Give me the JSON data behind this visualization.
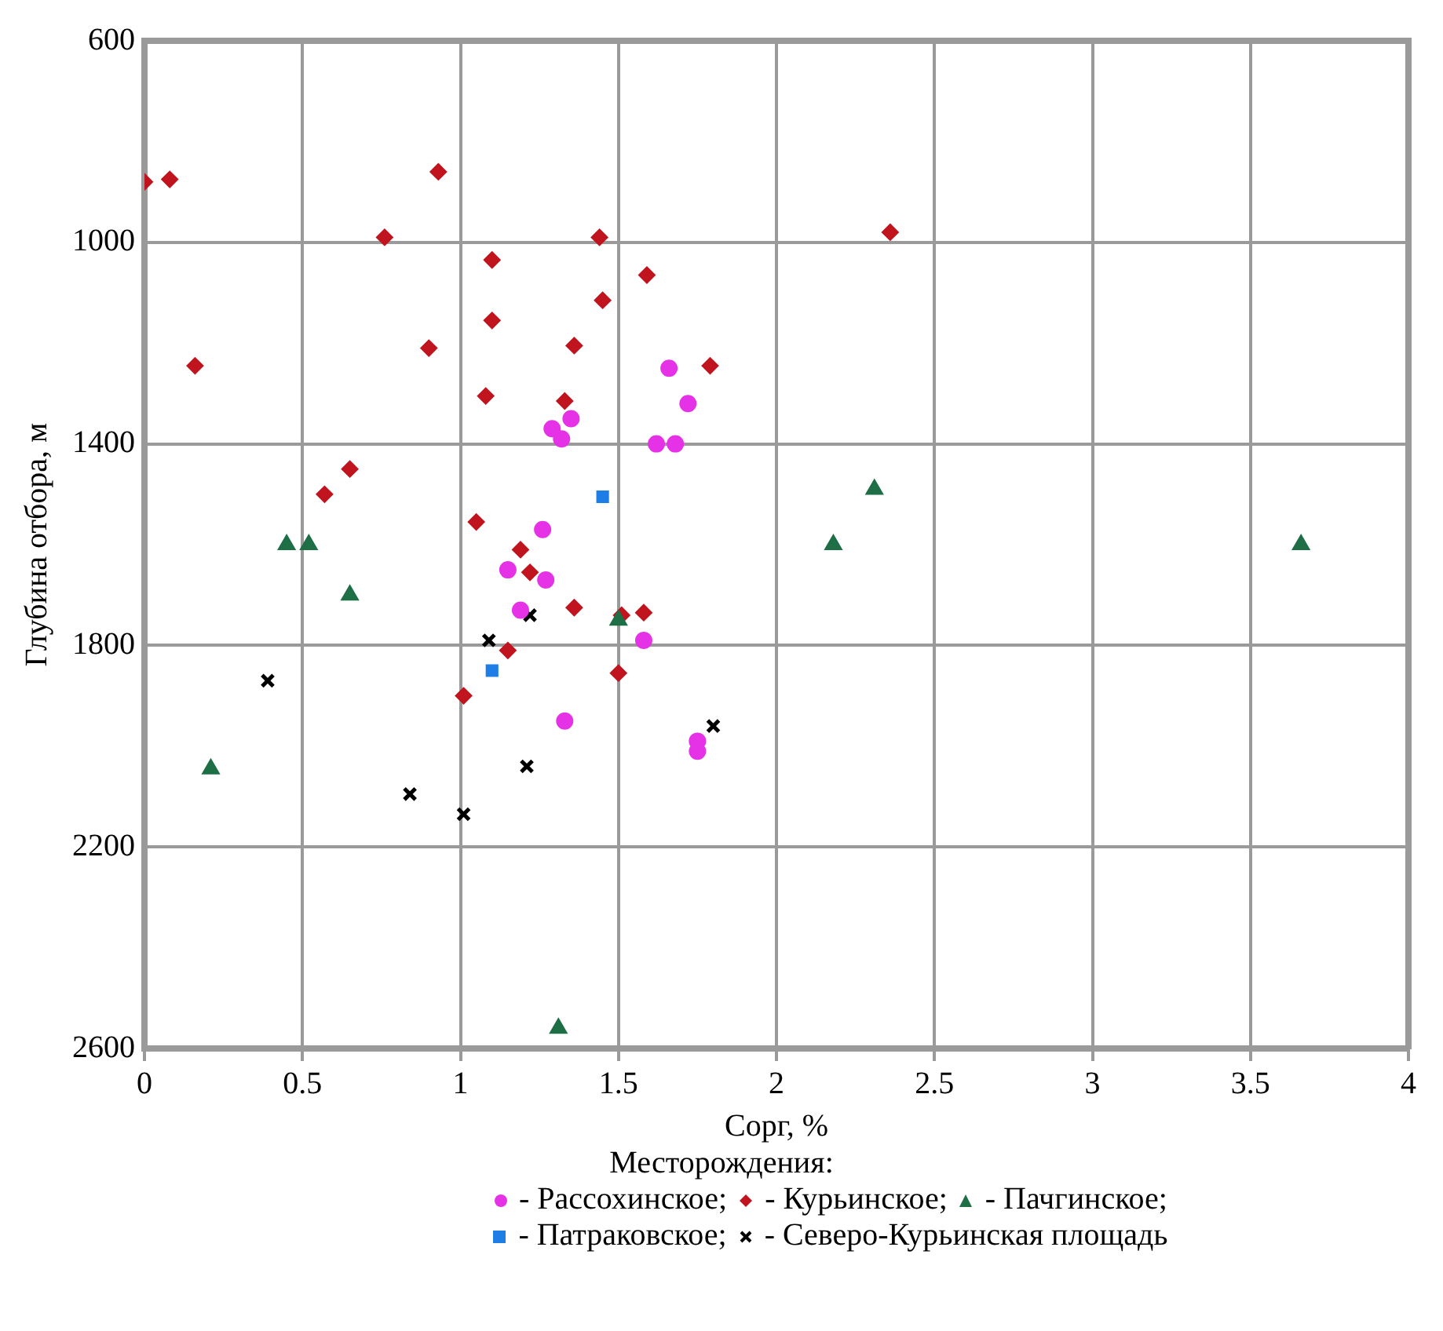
{
  "chart_data": {
    "type": "scatter",
    "xlabel": "Сорг, %",
    "ylabel": "Глубина отбора, м",
    "legend_title": "Месторождения:",
    "xlim": [
      0,
      4
    ],
    "xticks": [
      0,
      0.5,
      1,
      1.5,
      2,
      2.5,
      3,
      3.5,
      4
    ],
    "ylim": [
      2600,
      600
    ],
    "yticks": [
      600,
      1000,
      1400,
      1800,
      2200,
      2600
    ],
    "grid": true,
    "legend": "bottom",
    "series": [
      {
        "name": "- Рассохинское;",
        "color": "#e632e6",
        "marker": "circle",
        "x": [
          1.66,
          1.72,
          1.35,
          1.29,
          1.32,
          1.62,
          1.68,
          1.26,
          1.15,
          1.27,
          1.19,
          1.58,
          1.33,
          1.75,
          1.75
        ],
        "values": [
          1250,
          1320,
          1350,
          1370,
          1390,
          1400,
          1400,
          1570,
          1650,
          1670,
          1730,
          1790,
          1950,
          1990,
          2010
        ]
      },
      {
        "name": "- Курьинское;",
        "color": "#c0141e",
        "marker": "diamond",
        "x": [
          0,
          0.08,
          0.93,
          0.76,
          1.44,
          1.1,
          1.59,
          1.45,
          1.1,
          0.9,
          1.36,
          0.16,
          1.79,
          1.08,
          1.33,
          0.65,
          0.57,
          1.05,
          1.19,
          1.22,
          2.36,
          1.36,
          1.51,
          1.58,
          1.15,
          1.5,
          1.01
        ],
        "values": [
          880,
          875,
          860,
          990,
          990,
          1035,
          1065,
          1115,
          1155,
          1210,
          1205,
          1245,
          1245,
          1305,
          1315,
          1450,
          1500,
          1555,
          1610,
          1655,
          980,
          1725,
          1740,
          1735,
          1810,
          1855,
          1900
        ]
      },
      {
        "name": "- Пачгинское;",
        "color": "#1e6e46",
        "marker": "triangle",
        "x": [
          0.45,
          0.52,
          0.65,
          2.31,
          2.18,
          3.66,
          1.5,
          0.21,
          1.31
        ],
        "values": [
          1600,
          1600,
          1700,
          1490,
          1600,
          1600,
          1750,
          2045,
          2560
        ]
      },
      {
        "name": "- Патраковское;",
        "color": "#1e7ee6",
        "marker": "square",
        "x": [
          1.45,
          1.1
        ],
        "values": [
          1505,
          1850
        ]
      },
      {
        "name": "- Северо-Курьинская площадь",
        "color": "#000000",
        "marker": "cross",
        "x": [
          1.22,
          1.09,
          0.39,
          1.8,
          1.21,
          0.84,
          1.01
        ],
        "values": [
          1740,
          1790,
          1870,
          1960,
          2040,
          2095,
          2135
        ]
      }
    ]
  }
}
